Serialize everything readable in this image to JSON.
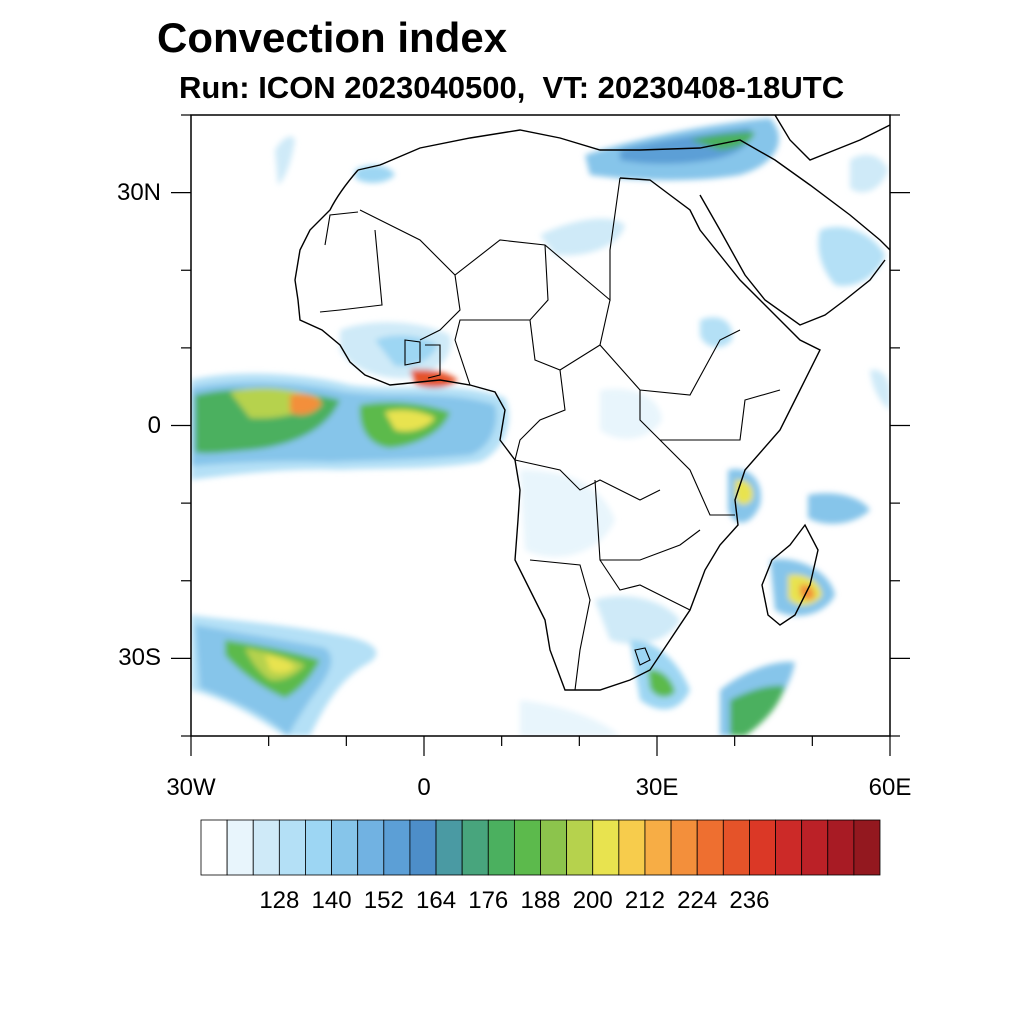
{
  "title": "Convection index",
  "subtitle": "Run: ICON 2023040500,  VT: 20230408-18UTC",
  "map": {
    "extent_lon": [
      -30,
      60
    ],
    "extent_lat": [
      -40,
      40
    ],
    "lat_ticks": [
      {
        "value": 30,
        "label": "30N"
      },
      {
        "value": 0,
        "label": "0"
      },
      {
        "value": -30,
        "label": "30S"
      }
    ],
    "lon_ticks": [
      {
        "value": -30,
        "label": "30W"
      },
      {
        "value": 0,
        "label": "0"
      },
      {
        "value": 30,
        "label": "30E"
      },
      {
        "value": 60,
        "label": "60E"
      }
    ]
  },
  "colorbar": {
    "colors": [
      "#ffffff",
      "#e8f5fc",
      "#cfeaf8",
      "#b4e0f6",
      "#9dd6f3",
      "#86c5ea",
      "#71b2e2",
      "#5c9fd6",
      "#4d8ec9",
      "#4a9aa3",
      "#48a57d",
      "#4bb05f",
      "#5cba4c",
      "#8cc44c",
      "#b6d24d",
      "#e8e34f",
      "#f7cc4c",
      "#f7ad45",
      "#f38f3b",
      "#ee6f30",
      "#e55329",
      "#db3826",
      "#cc2a28",
      "#bb2127",
      "#a81b24",
      "#93181f"
    ],
    "labels": [
      "128",
      "140",
      "152",
      "164",
      "176",
      "188",
      "200",
      "212",
      "224",
      "236"
    ]
  }
}
